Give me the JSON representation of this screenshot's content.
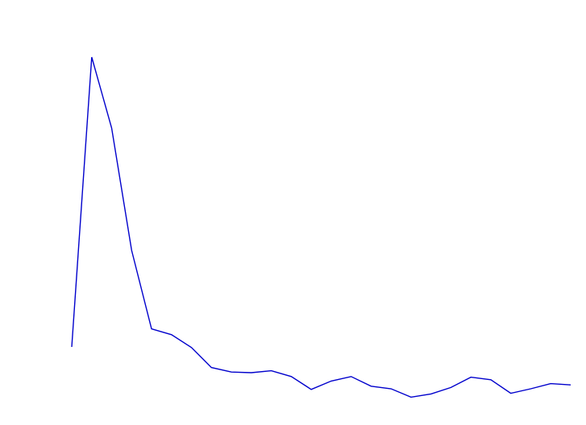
{
  "chart_data": {
    "type": "line",
    "x": [
      0,
      1,
      2,
      3,
      4,
      5,
      6,
      7,
      8,
      9,
      10,
      11,
      12,
      13,
      14,
      15,
      16,
      17,
      18,
      19,
      20,
      21,
      22,
      23,
      24,
      25
    ],
    "series": [
      {
        "color": "#0000cc",
        "values": [
          -0.5,
          8.5,
          6.3,
          2.5,
          0.06,
          -0.12,
          -0.52,
          -1.14,
          -1.28,
          -1.3,
          -1.24,
          -1.42,
          -1.82,
          -1.56,
          -1.42,
          -1.72,
          -1.8,
          -2.06,
          -1.96,
          -1.76,
          -1.44,
          -1.52,
          -1.94,
          -1.8,
          -1.64,
          -1.68
        ]
      }
    ],
    "ylim": [
      -2.5,
      10
    ],
    "grid": false,
    "axes_visible": false
  }
}
